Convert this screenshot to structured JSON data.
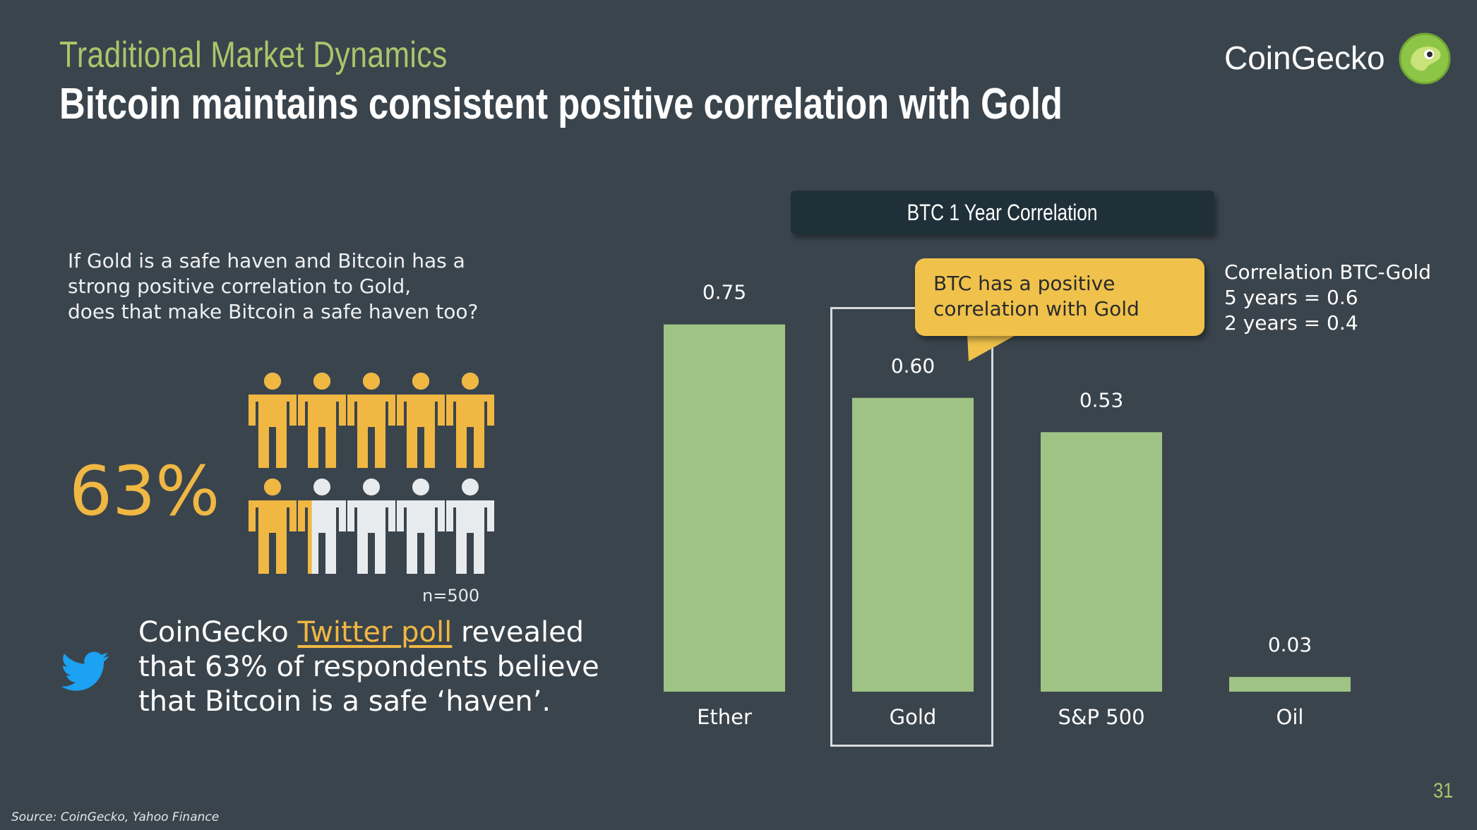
{
  "header": {
    "subtitle": "Traditional Market Dynamics",
    "title": "Bitcoin maintains consistent positive correlation with Gold",
    "brand": "CoinGecko"
  },
  "left": {
    "question_lines": [
      "If Gold is a safe haven and Bitcoin has a",
      "strong positive correlation to Gold,",
      "does that make Bitcoin a safe haven too?"
    ],
    "percent": "63%",
    "people_fraction": 0.63,
    "sample": "n=500",
    "poll_prefix": "CoinGecko ",
    "poll_link": "Twitter poll",
    "poll_suffix": " revealed",
    "poll_line2": "that 63% of respondents believe",
    "poll_line3": "that Bitcoin is a safe ‘haven’."
  },
  "callout": {
    "line1": "BTC has a positive",
    "line2": "correlation with Gold"
  },
  "note": {
    "line1": "Correlation BTC-Gold",
    "line2": "5 years = 0.6",
    "line3": "2 years = 0.4"
  },
  "footer": {
    "source": "Source: CoinGecko, Yahoo Finance",
    "page": "31"
  },
  "colors": {
    "background": "#3a444c",
    "bar": "#9fc385",
    "accent_green": "#a8c66c",
    "accent_orange": "#f0b743",
    "callout": "#f0c24b",
    "title_box": "#1f3039",
    "person_empty": "#e8ebee"
  },
  "chart_data": {
    "type": "bar",
    "title": "BTC 1 Year Correlation",
    "categories": [
      "Ether",
      "Gold",
      "S&P 500",
      "Oil"
    ],
    "values": [
      0.75,
      0.6,
      0.53,
      0.03
    ],
    "value_labels": [
      "0.75",
      "0.60",
      "0.53",
      "0.03"
    ],
    "ylim": [
      0,
      0.8
    ],
    "grid": false,
    "highlight": "Gold"
  }
}
